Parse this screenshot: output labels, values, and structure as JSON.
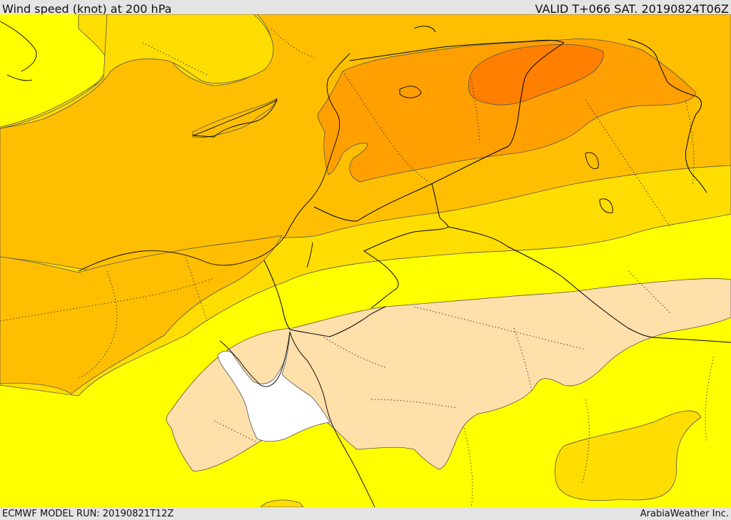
{
  "header": {
    "title": "Wind speed (knot) at 200 hPa",
    "valid": "VALID T+066 SAT. 20190824T06Z"
  },
  "footer": {
    "model_run": "ECMWF MODEL RUN: 20190821T12Z",
    "credit": "ArabiaWeather Inc."
  },
  "colors": {
    "yellow": "#ffff00",
    "gold": "#ffdd00",
    "amber": "#ffbf00",
    "orange": "#ff9f00",
    "dark_orange": "#ff7f00",
    "peach": "#ffdfaa",
    "white": "#ffffff"
  }
}
